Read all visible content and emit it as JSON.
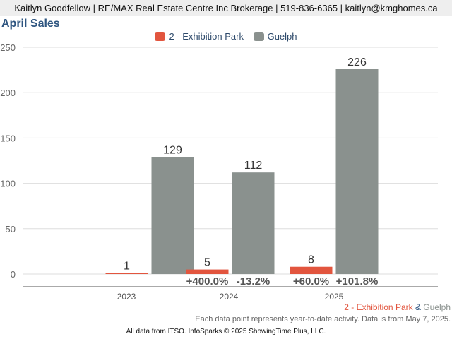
{
  "header": {
    "text": "Kaitlyn Goodfellow | RE/MAX Real Estate Centre Inc Brokerage | 519-836-6365 | kaitlyn@kmghomes.ca"
  },
  "compare": {
    "area1": "2 - Exhibition Park",
    "amp": " & ",
    "area2": "Guelph"
  },
  "note": "Each data point represents year-to-date activity. Data is from May 7, 2025.",
  "footer": "All data from ITSO. InfoSparks © 2025 ShowingTime Plus, LLC.",
  "colors": {
    "exhibition": "#e2553e",
    "guelph": "#8a918e",
    "title": "#2e5580",
    "amp": "#2e5580"
  },
  "chart_data": {
    "type": "bar",
    "title": "April Sales",
    "xlabel": "",
    "ylabel": "",
    "categories": [
      "2023",
      "2024",
      "2025"
    ],
    "ylim": [
      0,
      250
    ],
    "yticks": [
      0,
      50,
      100,
      150,
      200,
      250
    ],
    "grid": true,
    "legend_position": "top-center",
    "series": [
      {
        "name": "2 - Exhibition Park",
        "values": [
          1,
          5,
          8
        ],
        "pct_change": [
          "",
          "+400.0%",
          "+60.0%"
        ]
      },
      {
        "name": "Guelph",
        "values": [
          129,
          112,
          226
        ],
        "pct_change": [
          "",
          "-13.2%",
          "+101.8%"
        ]
      }
    ]
  }
}
